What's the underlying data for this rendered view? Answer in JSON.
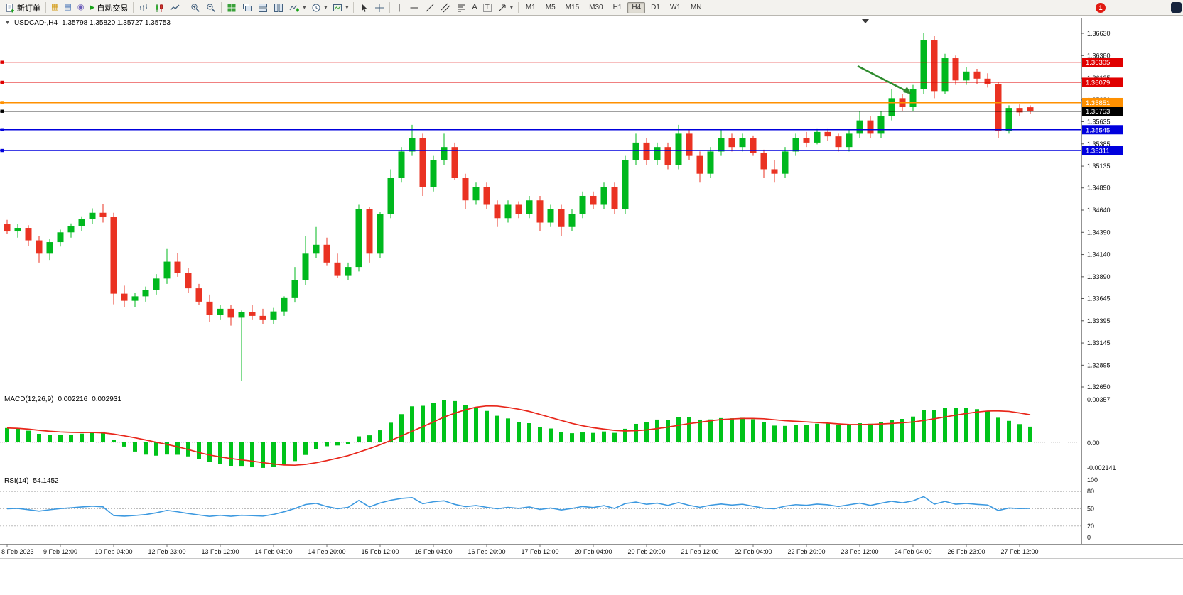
{
  "toolbar": {
    "new_order": "新订单",
    "autotrading": "自动交易",
    "timeframes": [
      "M1",
      "M5",
      "M15",
      "M30",
      "H1",
      "H4",
      "D1",
      "W1",
      "MN"
    ],
    "active_timeframe": "H4",
    "notification_count": "1"
  },
  "icons": {
    "expander": "▼",
    "autotrading_play": "▶",
    "caret": "▾",
    "charts": "▦",
    "market_watch": "▤",
    "navigator": "◉",
    "text_tool": "A",
    "label_tool": "T"
  },
  "chart_title": {
    "symbol": "USDCAD-,H4",
    "ohlc": "1.35798 1.35820 1.35727 1.35753"
  },
  "chart_data": {
    "type": "candlestick",
    "symbol": "USDCAD",
    "period": "H4",
    "current_ohlc": {
      "open": "1.35798",
      "high": "1.35820",
      "low": "1.35727",
      "close": "1.35753"
    },
    "price_range": [
      1.3265,
      1.3663
    ],
    "y_axis_ticks": [
      "1.36630",
      "1.36380",
      "1.36125",
      "1.35880",
      "1.35635",
      "1.35385",
      "1.35135",
      "1.34890",
      "1.34640",
      "1.34390",
      "1.34140",
      "1.33890",
      "1.33645",
      "1.33395",
      "1.33145",
      "1.32895",
      "1.32650"
    ],
    "x_axis_labels": [
      "8 Feb 2023",
      "9 Feb 12:00",
      "10 Feb 04:00",
      "12 Feb 23:00",
      "13 Feb 12:00",
      "14 Feb 04:00",
      "14 Feb 20:00",
      "15 Feb 12:00",
      "16 Feb 04:00",
      "16 Feb 20:00",
      "17 Feb 12:00",
      "20 Feb 04:00",
      "20 Feb 20:00",
      "21 Feb 12:00",
      "22 Feb 04:00",
      "22 Feb 20:00",
      "23 Feb 12:00",
      "24 Feb 04:00",
      "26 Feb 23:00",
      "27 Feb 12:00"
    ],
    "levels": [
      {
        "label": "1.36305",
        "price": 1.36305,
        "color": "#e00000",
        "width": 1.2
      },
      {
        "label": "1.36079",
        "price": 1.36079,
        "color": "#e00000",
        "width": 1.2
      },
      {
        "label": "1.35851",
        "price": 1.35851,
        "color": "#ff9000",
        "width": 2
      },
      {
        "label": "1.35753",
        "price": 1.35753,
        "color": "#000000",
        "width": 1.2
      },
      {
        "label": "1.35545",
        "price": 1.35545,
        "color": "#0000dd",
        "width": 1.5
      },
      {
        "label": "1.35311",
        "price": 1.35311,
        "color": "#0000dd",
        "width": 1.5
      }
    ],
    "annotations": [
      {
        "type": "arrow",
        "direction": "down-right",
        "color": "#2e8b2e"
      }
    ],
    "indicators": {
      "macd": {
        "name": "MACD(12,26,9)",
        "value": "0.002216",
        "signal_value": "0.002931",
        "params": [
          12,
          26,
          9
        ],
        "axis": [
          "0.00357",
          "0.00",
          "-0.002141"
        ]
      },
      "rsi": {
        "name": "RSI(14)",
        "value": "54.1452",
        "period": 14,
        "axis": [
          "100",
          "80",
          "50",
          "20",
          "0"
        ],
        "levels": [
          80,
          50,
          20
        ]
      }
    },
    "colors": {
      "bull": "#00b81e",
      "bear": "#ea3222",
      "macd_bar": "#00c319",
      "macd_signal": "#e8261a",
      "rsi_line": "#3c99e0",
      "axis_text": "#111111",
      "separator": "#939393"
    },
    "candles": [
      [
        1.3448,
        1.3453,
        1.3437,
        1.344
      ],
      [
        1.344,
        1.3448,
        1.3433,
        1.3444
      ],
      [
        1.3444,
        1.3447,
        1.3424,
        1.343
      ],
      [
        1.343,
        1.3435,
        1.3405,
        1.3415
      ],
      [
        1.3415,
        1.3432,
        1.3408,
        1.3428
      ],
      [
        1.3428,
        1.3442,
        1.3423,
        1.3439
      ],
      [
        1.3439,
        1.3449,
        1.3433,
        1.3446
      ],
      [
        1.3446,
        1.3457,
        1.344,
        1.3454
      ],
      [
        1.3454,
        1.3466,
        1.3448,
        1.3461
      ],
      [
        1.3461,
        1.3471,
        1.345,
        1.3456
      ],
      [
        1.3456,
        1.3461,
        1.3358,
        1.337
      ],
      [
        1.337,
        1.3379,
        1.3355,
        1.3362
      ],
      [
        1.3362,
        1.3371,
        1.3355,
        1.3367
      ],
      [
        1.3367,
        1.3378,
        1.3361,
        1.3374
      ],
      [
        1.3374,
        1.3392,
        1.3369,
        1.3387
      ],
      [
        1.3387,
        1.3421,
        1.3381,
        1.3406
      ],
      [
        1.3406,
        1.3416,
        1.3389,
        1.3393
      ],
      [
        1.3393,
        1.3399,
        1.3371,
        1.3376
      ],
      [
        1.3376,
        1.3381,
        1.3357,
        1.3361
      ],
      [
        1.3361,
        1.3369,
        1.3338,
        1.3346
      ],
      [
        1.3346,
        1.3357,
        1.3341,
        1.3353
      ],
      [
        1.3353,
        1.3357,
        1.3334,
        1.3343
      ],
      [
        1.3343,
        1.3351,
        1.3272,
        1.3349
      ],
      [
        1.3349,
        1.3357,
        1.3341,
        1.3345
      ],
      [
        1.3345,
        1.3353,
        1.3336,
        1.3341
      ],
      [
        1.3341,
        1.3354,
        1.3336,
        1.335
      ],
      [
        1.335,
        1.3367,
        1.3345,
        1.3365
      ],
      [
        1.3365,
        1.34,
        1.336,
        1.3385
      ],
      [
        1.3385,
        1.3435,
        1.338,
        1.3415
      ],
      [
        1.3415,
        1.3445,
        1.341,
        1.3425
      ],
      [
        1.3425,
        1.3433,
        1.3402,
        1.3405
      ],
      [
        1.3405,
        1.3415,
        1.3388,
        1.339
      ],
      [
        1.339,
        1.3405,
        1.3385,
        1.34
      ],
      [
        1.34,
        1.347,
        1.3395,
        1.3465
      ],
      [
        1.3465,
        1.3468,
        1.3405,
        1.3415
      ],
      [
        1.3415,
        1.3462,
        1.341,
        1.346
      ],
      [
        1.346,
        1.351,
        1.3455,
        1.35
      ],
      [
        1.35,
        1.3535,
        1.3495,
        1.353
      ],
      [
        1.353,
        1.356,
        1.3525,
        1.3545
      ],
      [
        1.3545,
        1.355,
        1.348,
        1.349
      ],
      [
        1.349,
        1.3525,
        1.3485,
        1.352
      ],
      [
        1.352,
        1.355,
        1.3515,
        1.3535
      ],
      [
        1.3535,
        1.354,
        1.3498,
        1.35
      ],
      [
        1.35,
        1.3505,
        1.3465,
        1.3475
      ],
      [
        1.3475,
        1.3495,
        1.347,
        1.349
      ],
      [
        1.349,
        1.3495,
        1.3465,
        1.347
      ],
      [
        1.347,
        1.3475,
        1.3445,
        1.3455
      ],
      [
        1.3455,
        1.3475,
        1.345,
        1.347
      ],
      [
        1.347,
        1.3474,
        1.3455,
        1.346
      ],
      [
        1.346,
        1.348,
        1.3455,
        1.3475
      ],
      [
        1.3475,
        1.348,
        1.344,
        1.345
      ],
      [
        1.345,
        1.347,
        1.3445,
        1.3465
      ],
      [
        1.3465,
        1.347,
        1.3435,
        1.3445
      ],
      [
        1.3445,
        1.3465,
        1.344,
        1.346
      ],
      [
        1.346,
        1.3485,
        1.3455,
        1.348
      ],
      [
        1.348,
        1.3485,
        1.3465,
        1.347
      ],
      [
        1.347,
        1.3495,
        1.3465,
        1.349
      ],
      [
        1.349,
        1.3495,
        1.346,
        1.3465
      ],
      [
        1.3465,
        1.3525,
        1.346,
        1.352
      ],
      [
        1.352,
        1.355,
        1.3515,
        1.354
      ],
      [
        1.354,
        1.3545,
        1.3515,
        1.352
      ],
      [
        1.352,
        1.354,
        1.3515,
        1.3535
      ],
      [
        1.3535,
        1.354,
        1.351,
        1.3515
      ],
      [
        1.3515,
        1.356,
        1.351,
        1.355
      ],
      [
        1.355,
        1.3555,
        1.352,
        1.3525
      ],
      [
        1.3525,
        1.353,
        1.3495,
        1.3505
      ],
      [
        1.3505,
        1.3535,
        1.35,
        1.353
      ],
      [
        1.353,
        1.3555,
        1.3525,
        1.3545
      ],
      [
        1.3545,
        1.355,
        1.353,
        1.3535
      ],
      [
        1.3535,
        1.355,
        1.353,
        1.3545
      ],
      [
        1.3545,
        1.3548,
        1.3525,
        1.3528
      ],
      [
        1.3528,
        1.3532,
        1.35,
        1.351
      ],
      [
        1.351,
        1.352,
        1.3495,
        1.3505
      ],
      [
        1.3505,
        1.3535,
        1.35,
        1.353
      ],
      [
        1.353,
        1.355,
        1.3525,
        1.3545
      ],
      [
        1.3545,
        1.3552,
        1.3535,
        1.354
      ],
      [
        1.354,
        1.3556,
        1.3538,
        1.3552
      ],
      [
        1.3552,
        1.3556,
        1.3542,
        1.3547
      ],
      [
        1.3547,
        1.355,
        1.353,
        1.3535
      ],
      [
        1.3535,
        1.3555,
        1.353,
        1.355
      ],
      [
        1.355,
        1.3575,
        1.3545,
        1.3565
      ],
      [
        1.3565,
        1.357,
        1.3545,
        1.355
      ],
      [
        1.355,
        1.3575,
        1.3545,
        1.357
      ],
      [
        1.357,
        1.36,
        1.3565,
        1.359
      ],
      [
        1.359,
        1.3595,
        1.3575,
        1.358
      ],
      [
        1.358,
        1.3605,
        1.3575,
        1.36
      ],
      [
        1.36,
        1.3663,
        1.3595,
        1.3655
      ],
      [
        1.3655,
        1.366,
        1.359,
        1.3598
      ],
      [
        1.3598,
        1.364,
        1.3595,
        1.3635
      ],
      [
        1.3635,
        1.3638,
        1.3605,
        1.361
      ],
      [
        1.361,
        1.3625,
        1.3605,
        1.362
      ],
      [
        1.362,
        1.3623,
        1.3606,
        1.3612
      ],
      [
        1.3612,
        1.3618,
        1.3602,
        1.3606
      ],
      [
        1.3606,
        1.3608,
        1.3545,
        1.3553
      ],
      [
        1.3553,
        1.3582,
        1.355,
        1.3579
      ],
      [
        1.3579,
        1.3583,
        1.357,
        1.3574
      ],
      [
        1.35798,
        1.3582,
        1.35727,
        1.35753
      ]
    ]
  }
}
